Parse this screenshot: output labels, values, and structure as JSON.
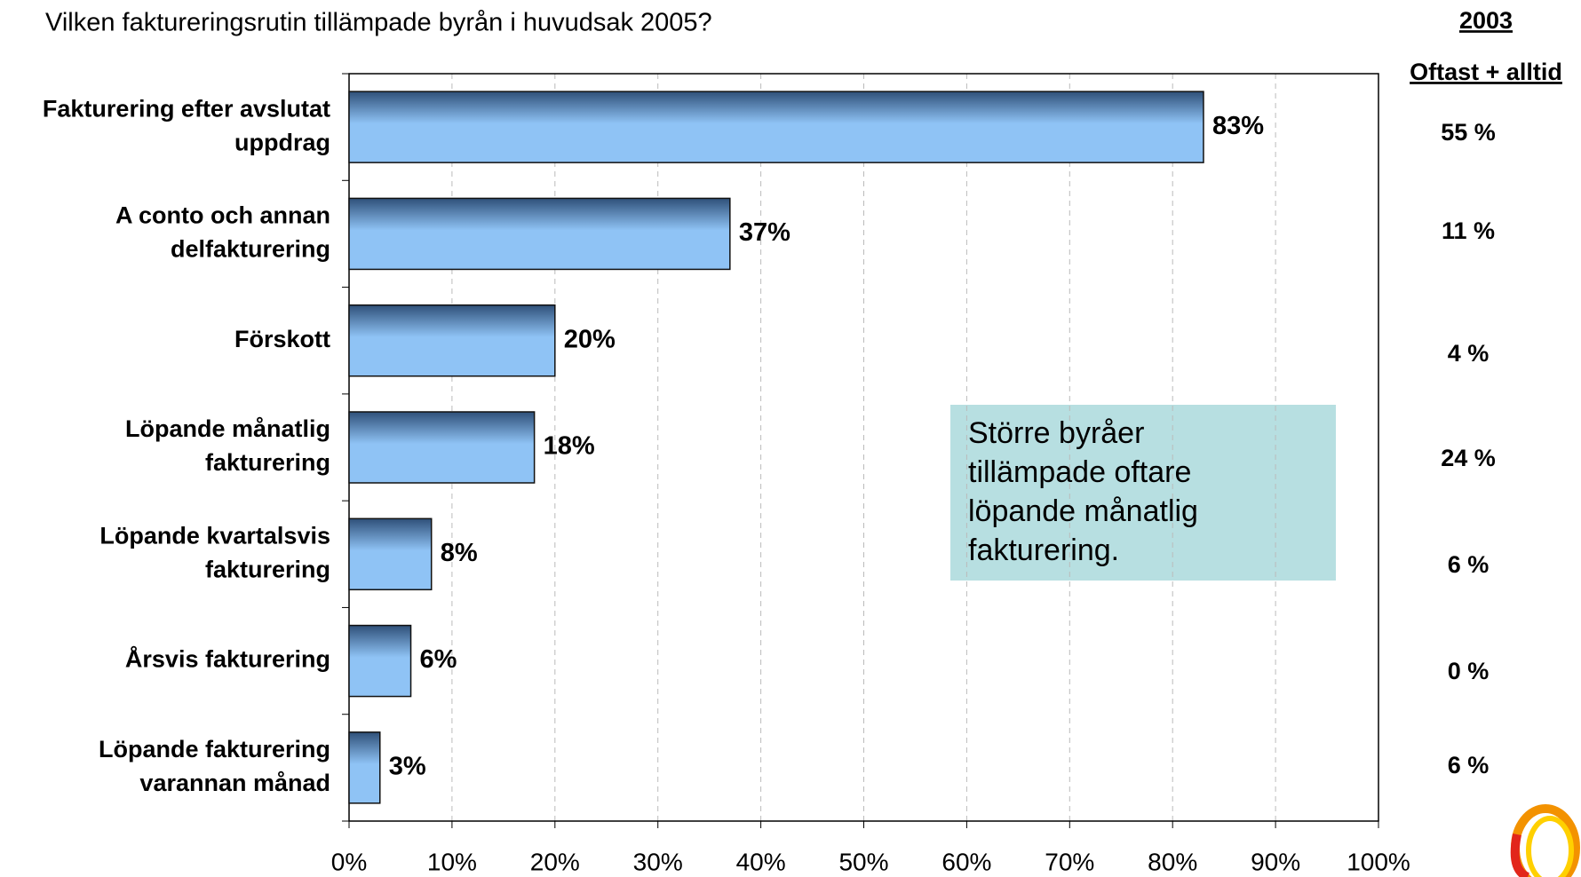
{
  "chart_data": {
    "type": "barh",
    "title": "Vilken faktureringsrutin tillämpade byrån i huvudsak 2005?",
    "categories": [
      [
        "Fakturering efter avslutat",
        "uppdrag"
      ],
      [
        "A conto och annan",
        "delfakturering"
      ],
      [
        "Förskott"
      ],
      [
        "Löpande månatlig",
        "fakturering"
      ],
      [
        "Löpande kvartalsvis",
        "fakturering"
      ],
      [
        "Årsvis fakturering"
      ],
      [
        "Löpande fakturering",
        "varannan månad"
      ]
    ],
    "values": [
      83,
      37,
      20,
      18,
      8,
      6,
      3
    ],
    "value_labels": [
      "83%",
      "37%",
      "20%",
      "18%",
      "8%",
      "6%",
      "3%"
    ],
    "color": "#8fc3f5",
    "xlim": [
      0,
      100
    ],
    "xticks": [
      {
        "value": 0,
        "label": "0%"
      },
      {
        "value": 10,
        "label": "10%"
      },
      {
        "value": 20,
        "label": "20%"
      },
      {
        "value": 30,
        "label": "30%"
      },
      {
        "value": 40,
        "label": "40%"
      },
      {
        "value": 50,
        "label": "50%"
      },
      {
        "value": 60,
        "label": "60%"
      },
      {
        "value": 70,
        "label": "70%"
      },
      {
        "value": 80,
        "label": "80%"
      },
      {
        "value": 90,
        "label": "90%"
      },
      {
        "value": 100,
        "label": "100%"
      }
    ],
    "grid": true,
    "annotation": [
      "Större byråer",
      "tillämpade oftare",
      "löpande månatlig",
      "fakturering."
    ],
    "side_table": {
      "title": "2003",
      "header": "Oftast + alltid",
      "rows": [
        "55 %",
        "11 %",
        "4 %",
        "24 %",
        "6 %",
        "0 %",
        "6 %"
      ]
    }
  }
}
